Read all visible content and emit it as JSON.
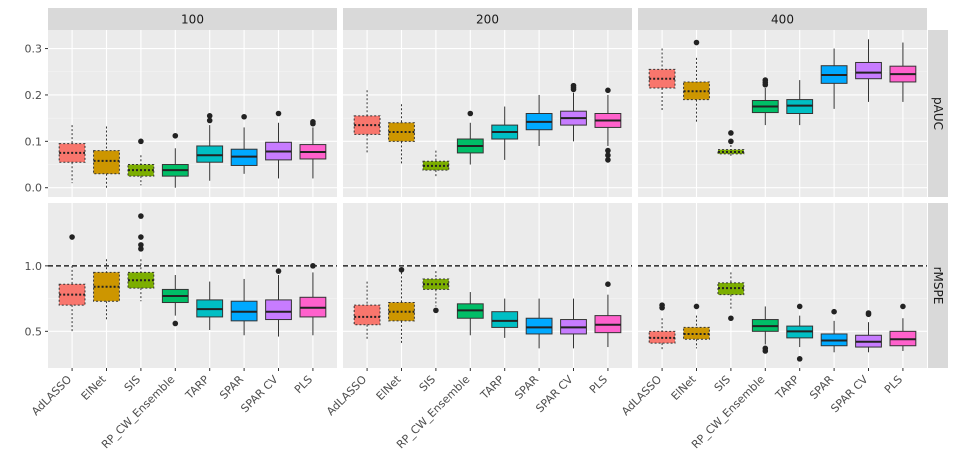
{
  "chart_data": {
    "type": "boxplot",
    "categories": [
      "AdLASSO",
      "ElNet",
      "SIS",
      "RP_CW_Ensemble",
      "TARP",
      "SPAR",
      "SPAR CV",
      "PLS"
    ],
    "colors": [
      "#F8766D",
      "#CD9600",
      "#7CAE00",
      "#00BE67",
      "#00BFC4",
      "#00A9FF",
      "#C77CFF",
      "#FF61CC"
    ],
    "dotted_categories": [
      "AdLASSO",
      "ElNet",
      "SIS"
    ],
    "columns": [
      "100",
      "200",
      "400"
    ],
    "rows": [
      {
        "label": "pAUC",
        "ylim": [
          -0.02,
          0.34
        ],
        "ticks": [
          "0.0",
          "0.1",
          "0.2",
          "0.3"
        ],
        "tick_values": [
          0,
          0.1,
          0.2,
          0.3
        ],
        "hline": null
      },
      {
        "label": "rMSPE",
        "ylim": [
          0.22,
          1.48
        ],
        "ticks": [
          "0.5",
          "1.0"
        ],
        "tick_values": [
          0.5,
          1.0
        ],
        "hline": 1.0
      }
    ],
    "panels": [
      {
        "row": "pAUC",
        "column": "100",
        "boxes": [
          {
            "min": 0.01,
            "q1": 0.055,
            "median": 0.075,
            "q3": 0.095,
            "max": 0.135,
            "outliers": []
          },
          {
            "min": 0.0,
            "q1": 0.03,
            "median": 0.058,
            "q3": 0.08,
            "max": 0.132,
            "outliers": []
          },
          {
            "min": 0.005,
            "q1": 0.025,
            "median": 0.038,
            "q3": 0.05,
            "max": 0.07,
            "outliers": [
              0.1
            ]
          },
          {
            "min": 0.0,
            "q1": 0.025,
            "median": 0.038,
            "q3": 0.05,
            "max": 0.085,
            "outliers": [
              0.112
            ]
          },
          {
            "min": 0.015,
            "q1": 0.055,
            "median": 0.07,
            "q3": 0.09,
            "max": 0.135,
            "outliers": [
              0.145,
              0.155
            ]
          },
          {
            "min": 0.03,
            "q1": 0.048,
            "median": 0.067,
            "q3": 0.083,
            "max": 0.13,
            "outliers": [
              0.153
            ]
          },
          {
            "min": 0.02,
            "q1": 0.06,
            "median": 0.078,
            "q3": 0.098,
            "max": 0.14,
            "outliers": [
              0.16
            ]
          },
          {
            "min": 0.02,
            "q1": 0.062,
            "median": 0.077,
            "q3": 0.093,
            "max": 0.13,
            "outliers": [
              0.138,
              0.142
            ]
          }
        ]
      },
      {
        "row": "pAUC",
        "column": "200",
        "boxes": [
          {
            "min": 0.075,
            "q1": 0.115,
            "median": 0.135,
            "q3": 0.155,
            "max": 0.21,
            "outliers": []
          },
          {
            "min": 0.05,
            "q1": 0.1,
            "median": 0.12,
            "q3": 0.14,
            "max": 0.18,
            "outliers": []
          },
          {
            "min": 0.025,
            "q1": 0.038,
            "median": 0.047,
            "q3": 0.057,
            "max": 0.08,
            "outliers": []
          },
          {
            "min": 0.05,
            "q1": 0.075,
            "median": 0.09,
            "q3": 0.105,
            "max": 0.14,
            "outliers": [
              0.16
            ]
          },
          {
            "min": 0.06,
            "q1": 0.105,
            "median": 0.12,
            "q3": 0.135,
            "max": 0.175,
            "outliers": []
          },
          {
            "min": 0.09,
            "q1": 0.125,
            "median": 0.142,
            "q3": 0.16,
            "max": 0.2,
            "outliers": []
          },
          {
            "min": 0.1,
            "q1": 0.135,
            "median": 0.15,
            "q3": 0.165,
            "max": 0.205,
            "outliers": [
              0.212,
              0.216,
              0.22
            ]
          },
          {
            "min": 0.09,
            "q1": 0.13,
            "median": 0.145,
            "q3": 0.16,
            "max": 0.2,
            "outliers": [
              0.06,
              0.07,
              0.08,
              0.21
            ]
          }
        ]
      },
      {
        "row": "pAUC",
        "column": "400",
        "boxes": [
          {
            "min": 0.165,
            "q1": 0.215,
            "median": 0.235,
            "q3": 0.255,
            "max": 0.3,
            "outliers": []
          },
          {
            "min": 0.14,
            "q1": 0.19,
            "median": 0.208,
            "q3": 0.228,
            "max": 0.28,
            "outliers": [
              0.313
            ]
          },
          {
            "min": 0.068,
            "q1": 0.073,
            "median": 0.077,
            "q3": 0.082,
            "max": 0.092,
            "outliers": [
              0.1,
              0.118
            ]
          },
          {
            "min": 0.135,
            "q1": 0.162,
            "median": 0.175,
            "q3": 0.188,
            "max": 0.215,
            "outliers": [
              0.222,
              0.227,
              0.232
            ]
          },
          {
            "min": 0.135,
            "q1": 0.16,
            "median": 0.177,
            "q3": 0.19,
            "max": 0.232,
            "outliers": []
          },
          {
            "min": 0.17,
            "q1": 0.225,
            "median": 0.243,
            "q3": 0.263,
            "max": 0.3,
            "outliers": []
          },
          {
            "min": 0.185,
            "q1": 0.235,
            "median": 0.248,
            "q3": 0.27,
            "max": 0.32,
            "outliers": []
          },
          {
            "min": 0.185,
            "q1": 0.228,
            "median": 0.245,
            "q3": 0.262,
            "max": 0.313,
            "outliers": []
          }
        ]
      },
      {
        "row": "rMSPE",
        "column": "100",
        "boxes": [
          {
            "min": 0.5,
            "q1": 0.7,
            "median": 0.78,
            "q3": 0.86,
            "max": 1.0,
            "outliers": [
              1.22
            ]
          },
          {
            "min": 0.58,
            "q1": 0.73,
            "median": 0.84,
            "q3": 0.95,
            "max": 1.05,
            "outliers": []
          },
          {
            "min": 0.73,
            "q1": 0.83,
            "median": 0.89,
            "q3": 0.95,
            "max": 1.05,
            "outliers": [
              1.13,
              1.16,
              1.22,
              1.38
            ]
          },
          {
            "min": 0.62,
            "q1": 0.72,
            "median": 0.77,
            "q3": 0.82,
            "max": 0.93,
            "outliers": [
              0.56
            ]
          },
          {
            "min": 0.51,
            "q1": 0.61,
            "median": 0.67,
            "q3": 0.74,
            "max": 0.88,
            "outliers": []
          },
          {
            "min": 0.47,
            "q1": 0.58,
            "median": 0.65,
            "q3": 0.73,
            "max": 0.9,
            "outliers": []
          },
          {
            "min": 0.46,
            "q1": 0.59,
            "median": 0.65,
            "q3": 0.74,
            "max": 0.93,
            "outliers": [
              0.96
            ]
          },
          {
            "min": 0.47,
            "q1": 0.61,
            "median": 0.68,
            "q3": 0.76,
            "max": 0.95,
            "outliers": [
              1.0
            ]
          }
        ]
      },
      {
        "row": "rMSPE",
        "column": "200",
        "boxes": [
          {
            "min": 0.43,
            "q1": 0.55,
            "median": 0.61,
            "q3": 0.7,
            "max": 0.88,
            "outliers": []
          },
          {
            "min": 0.41,
            "q1": 0.58,
            "median": 0.65,
            "q3": 0.72,
            "max": 0.95,
            "outliers": [
              0.97
            ]
          },
          {
            "min": 0.69,
            "q1": 0.82,
            "median": 0.86,
            "q3": 0.9,
            "max": 0.96,
            "outliers": [
              0.66
            ]
          },
          {
            "min": 0.47,
            "q1": 0.6,
            "median": 0.66,
            "q3": 0.71,
            "max": 0.8,
            "outliers": []
          },
          {
            "min": 0.45,
            "q1": 0.53,
            "median": 0.58,
            "q3": 0.65,
            "max": 0.75,
            "outliers": []
          },
          {
            "min": 0.37,
            "q1": 0.48,
            "median": 0.53,
            "q3": 0.6,
            "max": 0.75,
            "outliers": []
          },
          {
            "min": 0.37,
            "q1": 0.48,
            "median": 0.53,
            "q3": 0.59,
            "max": 0.75,
            "outliers": []
          },
          {
            "min": 0.38,
            "q1": 0.49,
            "median": 0.55,
            "q3": 0.62,
            "max": 0.78,
            "outliers": [
              0.86
            ]
          }
        ]
      },
      {
        "row": "rMSPE",
        "column": "400",
        "boxes": [
          {
            "min": 0.35,
            "q1": 0.41,
            "median": 0.45,
            "q3": 0.5,
            "max": 0.6,
            "outliers": [
              0.68,
              0.7
            ]
          },
          {
            "min": 0.37,
            "q1": 0.44,
            "median": 0.48,
            "q3": 0.53,
            "max": 0.62,
            "outliers": [
              0.69
            ]
          },
          {
            "min": 0.67,
            "q1": 0.78,
            "median": 0.83,
            "q3": 0.87,
            "max": 0.95,
            "outliers": [
              0.6
            ]
          },
          {
            "min": 0.4,
            "q1": 0.5,
            "median": 0.54,
            "q3": 0.59,
            "max": 0.69,
            "outliers": [
              0.35,
              0.37
            ]
          },
          {
            "min": 0.38,
            "q1": 0.45,
            "median": 0.5,
            "q3": 0.54,
            "max": 0.62,
            "outliers": [
              0.29,
              0.69
            ]
          },
          {
            "min": 0.34,
            "q1": 0.39,
            "median": 0.43,
            "q3": 0.48,
            "max": 0.58,
            "outliers": [
              0.65
            ]
          },
          {
            "min": 0.34,
            "q1": 0.38,
            "median": 0.42,
            "q3": 0.47,
            "max": 0.57,
            "outliers": [
              0.63,
              0.64
            ]
          },
          {
            "min": 0.35,
            "q1": 0.39,
            "median": 0.44,
            "q3": 0.5,
            "max": 0.6,
            "outliers": [
              0.69
            ]
          }
        ]
      }
    ]
  }
}
